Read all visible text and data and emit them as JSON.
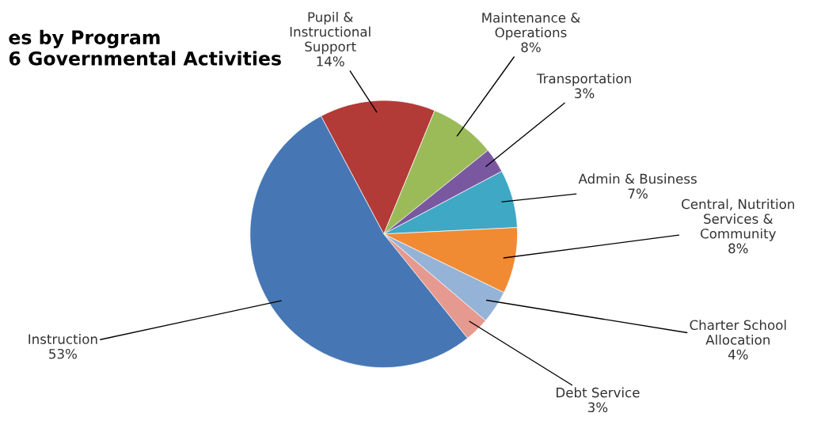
{
  "chart_data": {
    "type": "pie",
    "title": "es by Program\n6 Governmental Activities",
    "categories": [
      "Pupil &\nInstructional\nSupport",
      "Maintenance &\nOperations",
      "Transportation",
      "Admin & Business",
      "Central, Nutrition\nServices &\nCommunity",
      "Charter School\nAllocation",
      "Debt Service",
      "Instruction"
    ],
    "values": [
      14,
      8,
      3,
      7,
      8,
      4,
      3,
      53
    ],
    "value_labels": [
      "14%",
      "8%",
      "3%",
      "7%",
      "8%",
      "4%",
      "3%",
      "53%"
    ],
    "colors": [
      "#b23a37",
      "#9bbb59",
      "#7a58a0",
      "#3fa8c4",
      "#f08a33",
      "#95b3d7",
      "#e6998f",
      "#4677b4"
    ],
    "legend": false
  }
}
